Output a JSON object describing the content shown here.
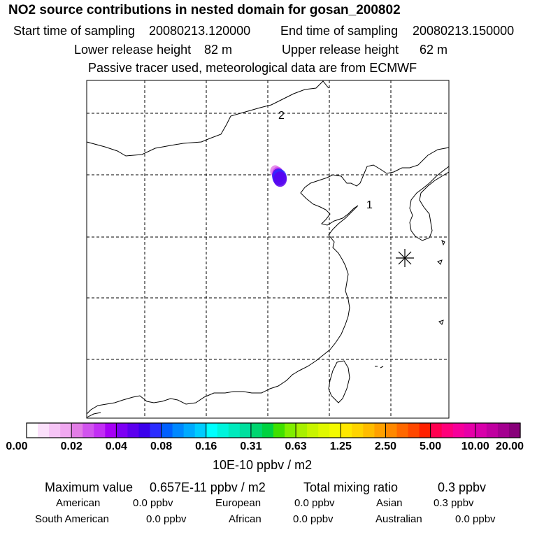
{
  "header": {
    "title": "NO2 source contributions in nested domain for gosan_200802",
    "start_label": "Start time of sampling",
    "start_value": "20080213.120000",
    "end_label": "End time of sampling",
    "end_value": "20080213.150000",
    "lower_label": "Lower release height",
    "lower_value": "82 m",
    "upper_label": "Upper release height",
    "upper_value": "62 m",
    "note": "Passive tracer used, meteorological data are from ECMWF"
  },
  "chart_data": {
    "type": "heatmap",
    "map_labels": [
      "1",
      "2"
    ],
    "colorbar": {
      "units": "10E-10 ppbv / m2",
      "ticks": [
        "0.00",
        "0.02",
        "0.04",
        "0.08",
        "0.16",
        "0.31",
        "0.63",
        "1.25",
        "2.50",
        "5.00",
        "10.00",
        "20.00"
      ],
      "colors": [
        [
          "#ffffff",
          "#fbe0fb",
          "#f6c5f6",
          "#f0a8f0"
        ],
        [
          "#e27de6",
          "#d154ee",
          "#c22ef4",
          "#a600f5"
        ],
        [
          "#7d00f4",
          "#5c00ee",
          "#3a00ec",
          "#2a2cff"
        ],
        [
          "#0060ff",
          "#0088ff",
          "#00aaff",
          "#00ccff"
        ],
        [
          "#00ffff",
          "#00f4dc",
          "#00eabd",
          "#00e09e"
        ],
        [
          "#00d670",
          "#00d240",
          "#40e000",
          "#80ee00"
        ],
        [
          "#a8f000",
          "#c8f400",
          "#e0f800",
          "#f4fa00"
        ],
        [
          "#ffe800",
          "#ffd400",
          "#ffbc00",
          "#ffa000"
        ],
        [
          "#ff8800",
          "#ff6800",
          "#ff4800",
          "#ff2000"
        ],
        [
          "#ff0050",
          "#ff007a",
          "#f6009a",
          "#e600a8"
        ],
        [
          "#d800aa",
          "#c000a0",
          "#a40090",
          "#88007a"
        ],
        [
          "#740068",
          "#600058",
          "#4c0048",
          "#380032"
        ]
      ]
    },
    "plume": [
      {
        "lon": 121.2,
        "lat": 40.6,
        "value": 0.02
      },
      {
        "lon": 121.6,
        "lat": 40.3,
        "value": 0.03
      },
      {
        "lon": 121.7,
        "lat": 39.9,
        "value": 0.05
      },
      {
        "lon": 121.9,
        "lat": 39.6,
        "value": 0.07
      },
      {
        "lon": 122.0,
        "lat": 39.3,
        "value": 0.06
      }
    ],
    "receptor": "gosan"
  },
  "footer": {
    "max_label": "Maximum value",
    "max_value": "0.657E-11 ppbv / m2",
    "total_label": "Total mixing ratio",
    "total_value": "0.3 ppbv",
    "regions": [
      {
        "name": "American",
        "value": "0.0 ppbv"
      },
      {
        "name": "European",
        "value": "0.0 ppbv"
      },
      {
        "name": "Asian",
        "value": "0.3 ppbv"
      },
      {
        "name": "South American",
        "value": "0.0 ppbv"
      },
      {
        "name": "African",
        "value": "0.0 ppbv"
      },
      {
        "name": "Australian",
        "value": "0.0 ppbv"
      }
    ]
  }
}
